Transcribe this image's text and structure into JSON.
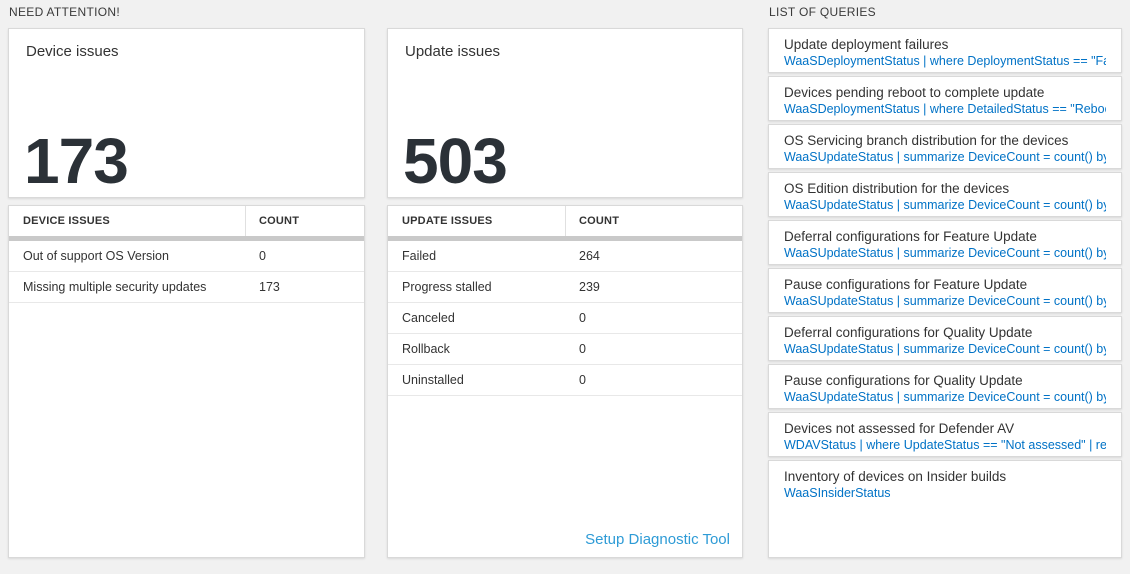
{
  "colors": {
    "page_background": "#f1f1f1",
    "tile_background": "#ffffff",
    "big_number": "#2b3137",
    "query_code_blue": "#0072c6",
    "setup_link_blue": "#2e9bd6",
    "thick_bar_gray": "#c9c9c9"
  },
  "sections": {
    "need_attention": "NEED ATTENTION!",
    "list_of_queries": "LIST OF QUERIES"
  },
  "device_card": {
    "title": "Device issues",
    "count": "173",
    "table": {
      "headers": [
        "DEVICE ISSUES",
        "COUNT"
      ],
      "rows": [
        {
          "label": "Out of support OS Version",
          "count": "0"
        },
        {
          "label": "Missing multiple security updates",
          "count": "173"
        }
      ]
    }
  },
  "update_card": {
    "title": "Update issues",
    "count": "503",
    "table": {
      "headers": [
        "UPDATE ISSUES",
        "COUNT"
      ],
      "rows": [
        {
          "label": "Failed",
          "count": "264"
        },
        {
          "label": "Progress stalled",
          "count": "239"
        },
        {
          "label": "Canceled",
          "count": "0"
        },
        {
          "label": "Rollback",
          "count": "0"
        },
        {
          "label": "Uninstalled",
          "count": "0"
        }
      ]
    },
    "footer_link": "Setup Diagnostic Tool"
  },
  "queries": [
    {
      "name": "Update deployment failures",
      "query": "WaaSDeploymentStatus | where DeploymentStatus == \"Failed\" |..."
    },
    {
      "name": "Devices pending reboot to complete update",
      "query": "WaaSDeploymentStatus | where DetailedStatus == \"Reboot pend..."
    },
    {
      "name": "OS Servicing branch distribution for the devices",
      "query": "WaaSUpdateStatus | summarize DeviceCount = count() by OSSer..."
    },
    {
      "name": "OS Edition distribution for the devices",
      "query": "WaaSUpdateStatus | summarize DeviceCount = count() by OSEdit..."
    },
    {
      "name": "Deferral configurations for Feature Update",
      "query": "WaaSUpdateStatus | summarize DeviceCount = count() by Featur..."
    },
    {
      "name": "Pause configurations for Feature Update",
      "query": "WaaSUpdateStatus | summarize DeviceCount = count() by Featur..."
    },
    {
      "name": "Deferral configurations for Quality Update",
      "query": "WaaSUpdateStatus | summarize DeviceCount = count() by Qualit..."
    },
    {
      "name": "Pause configurations for Quality Update",
      "query": "WaaSUpdateStatus | summarize DeviceCount = count() by Qualit..."
    },
    {
      "name": "Devices not assessed for Defender AV",
      "query": "WDAVStatus | where UpdateStatus == \"Not assessed\" | render ta..."
    },
    {
      "name": "Inventory of devices on Insider builds",
      "query": "WaaSInsiderStatus"
    }
  ]
}
